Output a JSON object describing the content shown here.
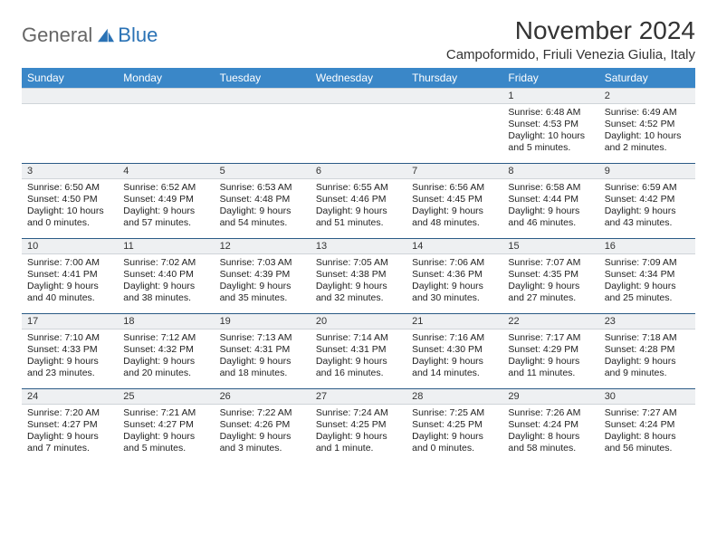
{
  "brand": {
    "part1": "General",
    "part2": "Blue"
  },
  "title": "November 2024",
  "location": "Campoformido, Friuli Venezia Giulia, Italy",
  "colors": {
    "header_bg": "#3a87c8",
    "header_text": "#ffffff",
    "daynum_bg": "#eef0f2",
    "daynum_border_top": "#2b5b86",
    "logo_gray": "#666666",
    "logo_blue": "#2a72b5"
  },
  "daysOfWeek": [
    "Sunday",
    "Monday",
    "Tuesday",
    "Wednesday",
    "Thursday",
    "Friday",
    "Saturday"
  ],
  "weeks": [
    [
      null,
      null,
      null,
      null,
      null,
      {
        "n": "1",
        "sr": "6:48 AM",
        "ss": "4:53 PM",
        "dl": "10 hours and 5 minutes."
      },
      {
        "n": "2",
        "sr": "6:49 AM",
        "ss": "4:52 PM",
        "dl": "10 hours and 2 minutes."
      }
    ],
    [
      {
        "n": "3",
        "sr": "6:50 AM",
        "ss": "4:50 PM",
        "dl": "10 hours and 0 minutes."
      },
      {
        "n": "4",
        "sr": "6:52 AM",
        "ss": "4:49 PM",
        "dl": "9 hours and 57 minutes."
      },
      {
        "n": "5",
        "sr": "6:53 AM",
        "ss": "4:48 PM",
        "dl": "9 hours and 54 minutes."
      },
      {
        "n": "6",
        "sr": "6:55 AM",
        "ss": "4:46 PM",
        "dl": "9 hours and 51 minutes."
      },
      {
        "n": "7",
        "sr": "6:56 AM",
        "ss": "4:45 PM",
        "dl": "9 hours and 48 minutes."
      },
      {
        "n": "8",
        "sr": "6:58 AM",
        "ss": "4:44 PM",
        "dl": "9 hours and 46 minutes."
      },
      {
        "n": "9",
        "sr": "6:59 AM",
        "ss": "4:42 PM",
        "dl": "9 hours and 43 minutes."
      }
    ],
    [
      {
        "n": "10",
        "sr": "7:00 AM",
        "ss": "4:41 PM",
        "dl": "9 hours and 40 minutes."
      },
      {
        "n": "11",
        "sr": "7:02 AM",
        "ss": "4:40 PM",
        "dl": "9 hours and 38 minutes."
      },
      {
        "n": "12",
        "sr": "7:03 AM",
        "ss": "4:39 PM",
        "dl": "9 hours and 35 minutes."
      },
      {
        "n": "13",
        "sr": "7:05 AM",
        "ss": "4:38 PM",
        "dl": "9 hours and 32 minutes."
      },
      {
        "n": "14",
        "sr": "7:06 AM",
        "ss": "4:36 PM",
        "dl": "9 hours and 30 minutes."
      },
      {
        "n": "15",
        "sr": "7:07 AM",
        "ss": "4:35 PM",
        "dl": "9 hours and 27 minutes."
      },
      {
        "n": "16",
        "sr": "7:09 AM",
        "ss": "4:34 PM",
        "dl": "9 hours and 25 minutes."
      }
    ],
    [
      {
        "n": "17",
        "sr": "7:10 AM",
        "ss": "4:33 PM",
        "dl": "9 hours and 23 minutes."
      },
      {
        "n": "18",
        "sr": "7:12 AM",
        "ss": "4:32 PM",
        "dl": "9 hours and 20 minutes."
      },
      {
        "n": "19",
        "sr": "7:13 AM",
        "ss": "4:31 PM",
        "dl": "9 hours and 18 minutes."
      },
      {
        "n": "20",
        "sr": "7:14 AM",
        "ss": "4:31 PM",
        "dl": "9 hours and 16 minutes."
      },
      {
        "n": "21",
        "sr": "7:16 AM",
        "ss": "4:30 PM",
        "dl": "9 hours and 14 minutes."
      },
      {
        "n": "22",
        "sr": "7:17 AM",
        "ss": "4:29 PM",
        "dl": "9 hours and 11 minutes."
      },
      {
        "n": "23",
        "sr": "7:18 AM",
        "ss": "4:28 PM",
        "dl": "9 hours and 9 minutes."
      }
    ],
    [
      {
        "n": "24",
        "sr": "7:20 AM",
        "ss": "4:27 PM",
        "dl": "9 hours and 7 minutes."
      },
      {
        "n": "25",
        "sr": "7:21 AM",
        "ss": "4:27 PM",
        "dl": "9 hours and 5 minutes."
      },
      {
        "n": "26",
        "sr": "7:22 AM",
        "ss": "4:26 PM",
        "dl": "9 hours and 3 minutes."
      },
      {
        "n": "27",
        "sr": "7:24 AM",
        "ss": "4:25 PM",
        "dl": "9 hours and 1 minute."
      },
      {
        "n": "28",
        "sr": "7:25 AM",
        "ss": "4:25 PM",
        "dl": "9 hours and 0 minutes."
      },
      {
        "n": "29",
        "sr": "7:26 AM",
        "ss": "4:24 PM",
        "dl": "8 hours and 58 minutes."
      },
      {
        "n": "30",
        "sr": "7:27 AM",
        "ss": "4:24 PM",
        "dl": "8 hours and 56 minutes."
      }
    ]
  ],
  "labels": {
    "sunrise": "Sunrise:",
    "sunset": "Sunset:",
    "daylight": "Daylight:"
  }
}
